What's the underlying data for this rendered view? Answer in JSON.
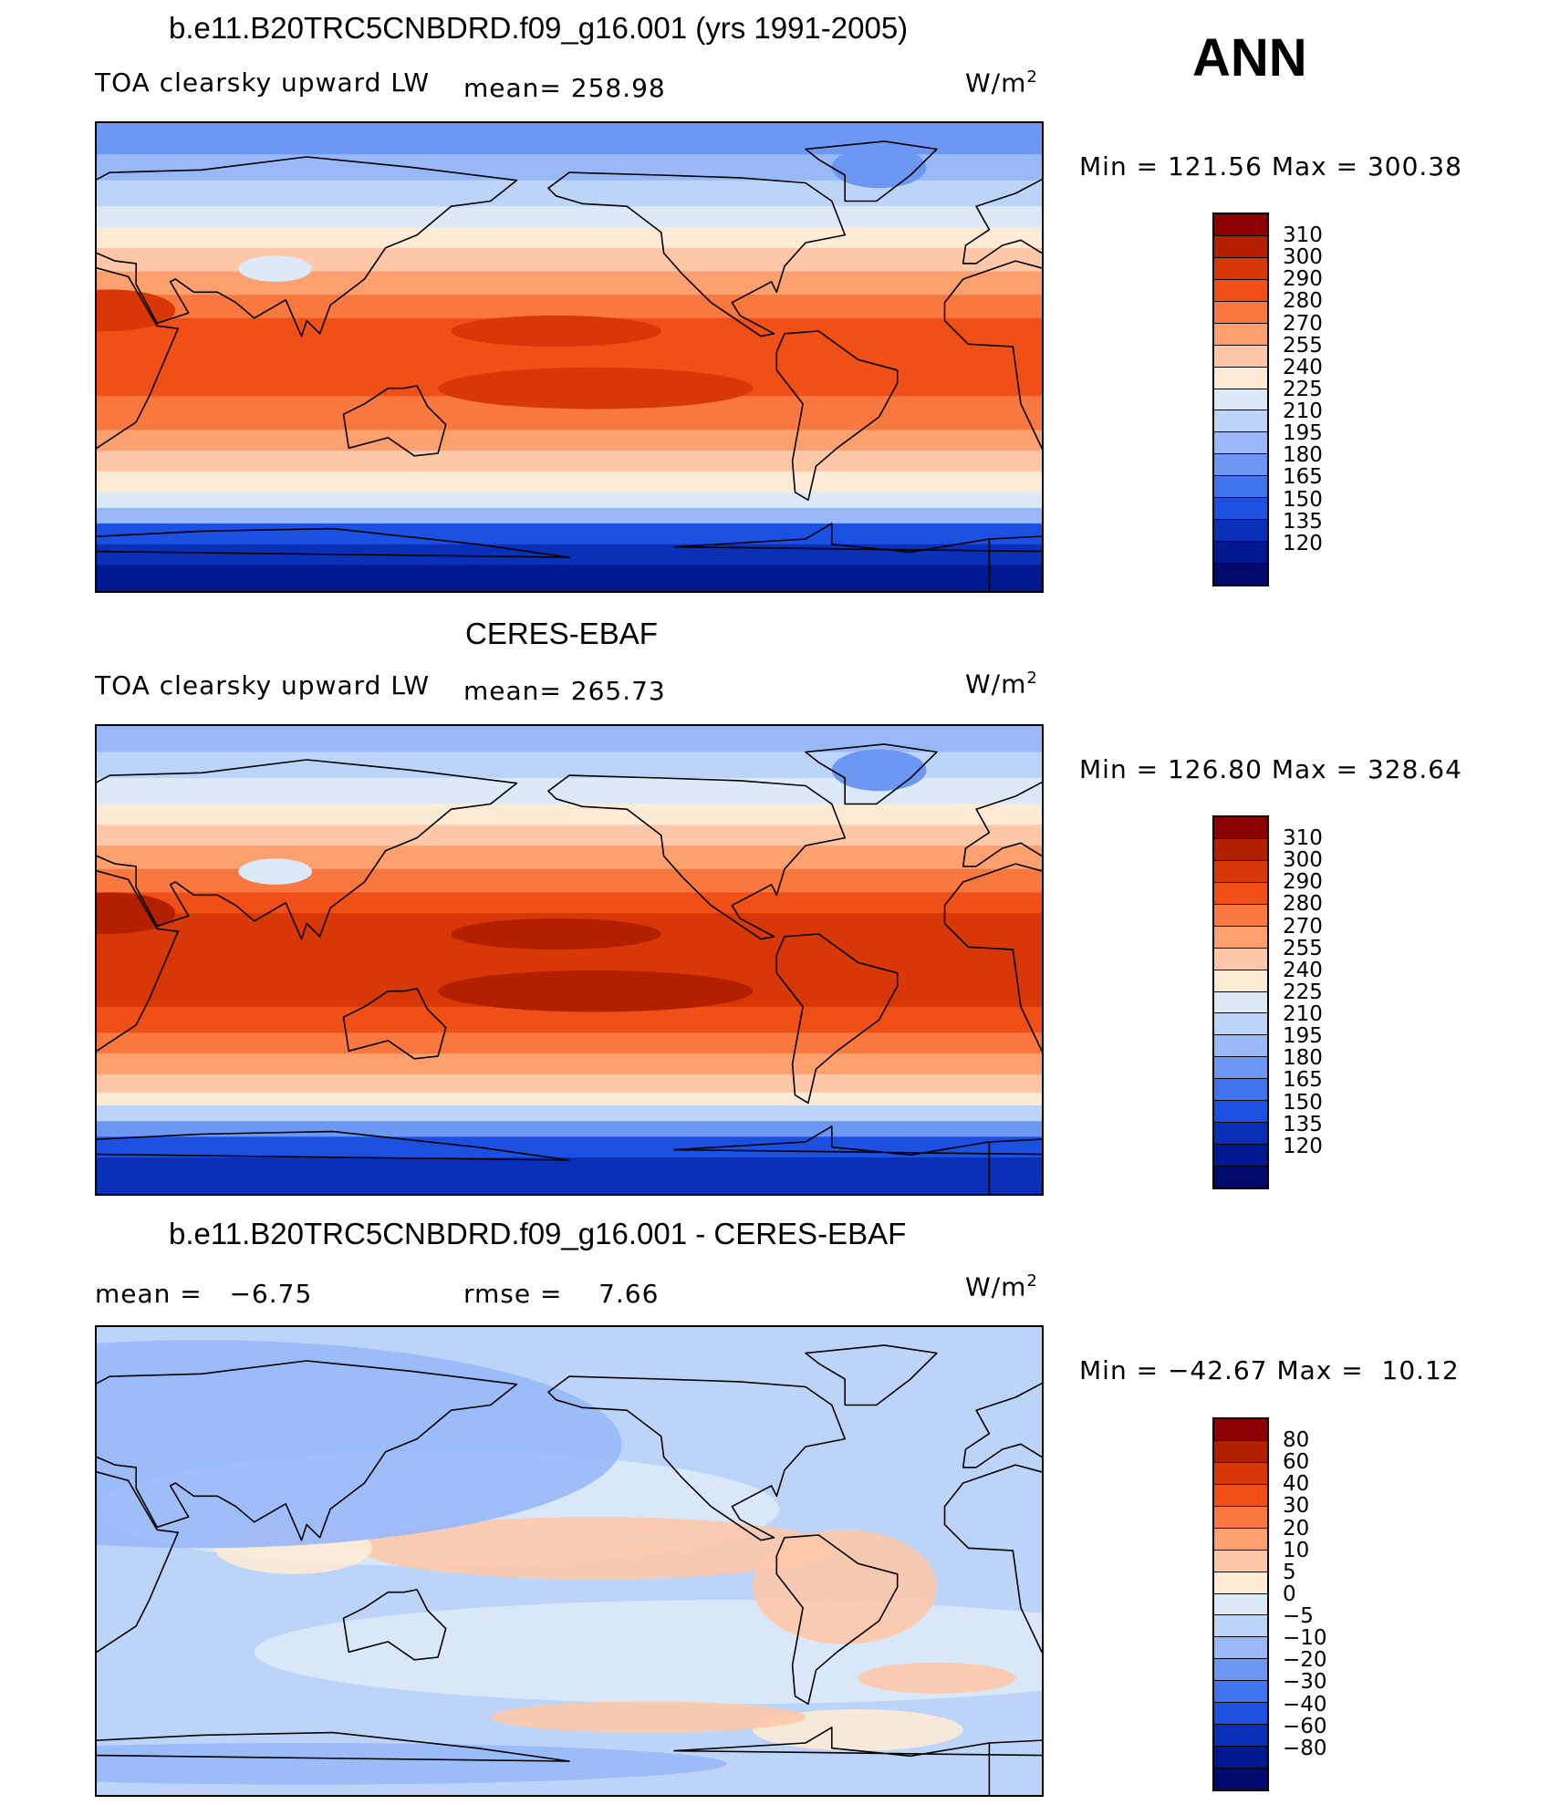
{
  "season": "ANN",
  "panels": [
    {
      "title": "b.e11.B20TRC5CNBDRD.f09_g16.001 (yrs 1991-2005)",
      "left_label": "TOA clearsky upward LW",
      "mid_label": "mean= 258.98",
      "units": "W/m²",
      "minmax": "Min = 121.56 Max = 300.38",
      "scale": "abs",
      "map_variant": "model"
    },
    {
      "title": "CERES-EBAF",
      "left_label": "TOA clearsky upward LW",
      "mid_label": "mean= 265.73",
      "units": "W/m²",
      "minmax": "Min = 126.80 Max = 328.64",
      "scale": "abs",
      "map_variant": "obs"
    },
    {
      "title": "b.e11.B20TRC5CNBDRD.f09_g16.001 - CERES-EBAF",
      "left_label": "mean =   −6.75",
      "mid_label": "rmse =    7.66",
      "units": "W/m²",
      "minmax": "Min = −42.67 Max =  10.12",
      "scale": "diff",
      "map_variant": "diff"
    }
  ],
  "colorbars": {
    "abs": {
      "colors": [
        "#8b0000",
        "#b22000",
        "#d83808",
        "#f05018",
        "#f87840",
        "#fca070",
        "#fec8a8",
        "#fdebd6",
        "#dceaf8",
        "#bcd4f8",
        "#98b8f8",
        "#6c98f4",
        "#3f74ee",
        "#1c50e0",
        "#0a30b8",
        "#001890",
        "#000a6c"
      ],
      "labels": [
        "310",
        "300",
        "290",
        "280",
        "270",
        "255",
        "240",
        "225",
        "210",
        "195",
        "180",
        "165",
        "150",
        "135",
        "120"
      ]
    },
    "diff": {
      "colors": [
        "#8b0000",
        "#b22000",
        "#d83808",
        "#f05018",
        "#f87840",
        "#fca070",
        "#fec8a8",
        "#fdebd6",
        "#dceaf8",
        "#bcd4f8",
        "#98b8f8",
        "#6c98f4",
        "#3f74ee",
        "#1c50e0",
        "#0a30b8",
        "#001890",
        "#000a6c"
      ],
      "labels": [
        "80",
        "60",
        "40",
        "30",
        "20",
        "10",
        "5",
        "0",
        "−5",
        "−10",
        "−20",
        "−30",
        "−40",
        "−60",
        "−80"
      ]
    }
  }
}
